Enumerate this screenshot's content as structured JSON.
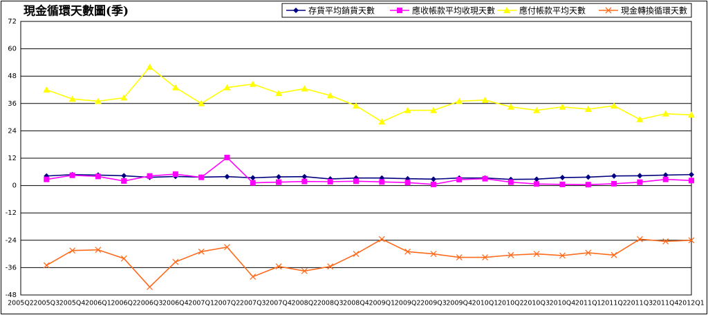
{
  "chart_data": {
    "type": "line",
    "title": "現金循環天數圖(季)",
    "categories": [
      "2005Q2",
      "2005Q3",
      "2005Q4",
      "2006Q1",
      "2006Q2",
      "2006Q3",
      "2006Q4",
      "2007Q1",
      "2007Q2",
      "2007Q3",
      "2007Q4",
      "2008Q2",
      "2008Q3",
      "2008Q4",
      "2009Q1",
      "2009Q2",
      "2009Q3",
      "2009Q4",
      "2010Q1",
      "2010Q2",
      "2010Q3",
      "2010Q4",
      "2011Q1",
      "2011Q2",
      "2011Q3",
      "2011Q4",
      "2012Q1"
    ],
    "series": [
      {
        "name": "存貨平均銷貨天數",
        "color": "#000080",
        "marker": "diamond",
        "values": [
          null,
          4.2,
          4.8,
          4.6,
          4.3,
          3.6,
          4.0,
          3.7,
          3.9,
          3.4,
          3.8,
          3.9,
          2.9,
          3.3,
          3.3,
          3.0,
          2.8,
          3.3,
          3.3,
          2.7,
          2.8,
          3.5,
          3.7,
          4.2,
          4.3,
          4.6,
          4.8
        ]
      },
      {
        "name": "應收帳款平均收現天數",
        "color": "#ff00ff",
        "marker": "square",
        "values": [
          null,
          2.7,
          4.5,
          4.0,
          2.0,
          4.2,
          5.0,
          3.6,
          12.3,
          1.2,
          1.5,
          1.8,
          1.7,
          1.9,
          1.6,
          1.3,
          0.5,
          2.6,
          3.0,
          1.5,
          0.7,
          0.5,
          0.4,
          0.8,
          1.5,
          2.7,
          2.2
        ]
      },
      {
        "name": "應付帳款平均天數",
        "color": "#ffff00",
        "marker": "triangle",
        "values": [
          null,
          42,
          38,
          37,
          38.5,
          52,
          43,
          36,
          43,
          44.5,
          40.5,
          42.5,
          39.5,
          35,
          28,
          33,
          33,
          37,
          37.5,
          34.5,
          33,
          34.5,
          33.5,
          35,
          29,
          31.5,
          31
        ]
      },
      {
        "name": "現金轉換循環天數",
        "color": "#ff6a1a",
        "marker": "x",
        "values": [
          null,
          -35,
          -28.5,
          -28.2,
          -32,
          -44.5,
          -33.5,
          -29,
          -27,
          -40,
          -35.5,
          -37.5,
          -35.5,
          -30,
          -23.5,
          -29,
          -30,
          -31.5,
          -31.5,
          -30.5,
          -30,
          -30.7,
          -29.5,
          -30.5,
          -23.5,
          -24.5,
          -24
        ]
      }
    ],
    "ylim": [
      -48,
      72
    ],
    "yticks": [
      -48,
      -36,
      -24,
      -12,
      0,
      12,
      24,
      36,
      48,
      60,
      72
    ],
    "grid": true,
    "legend": "top-right"
  }
}
